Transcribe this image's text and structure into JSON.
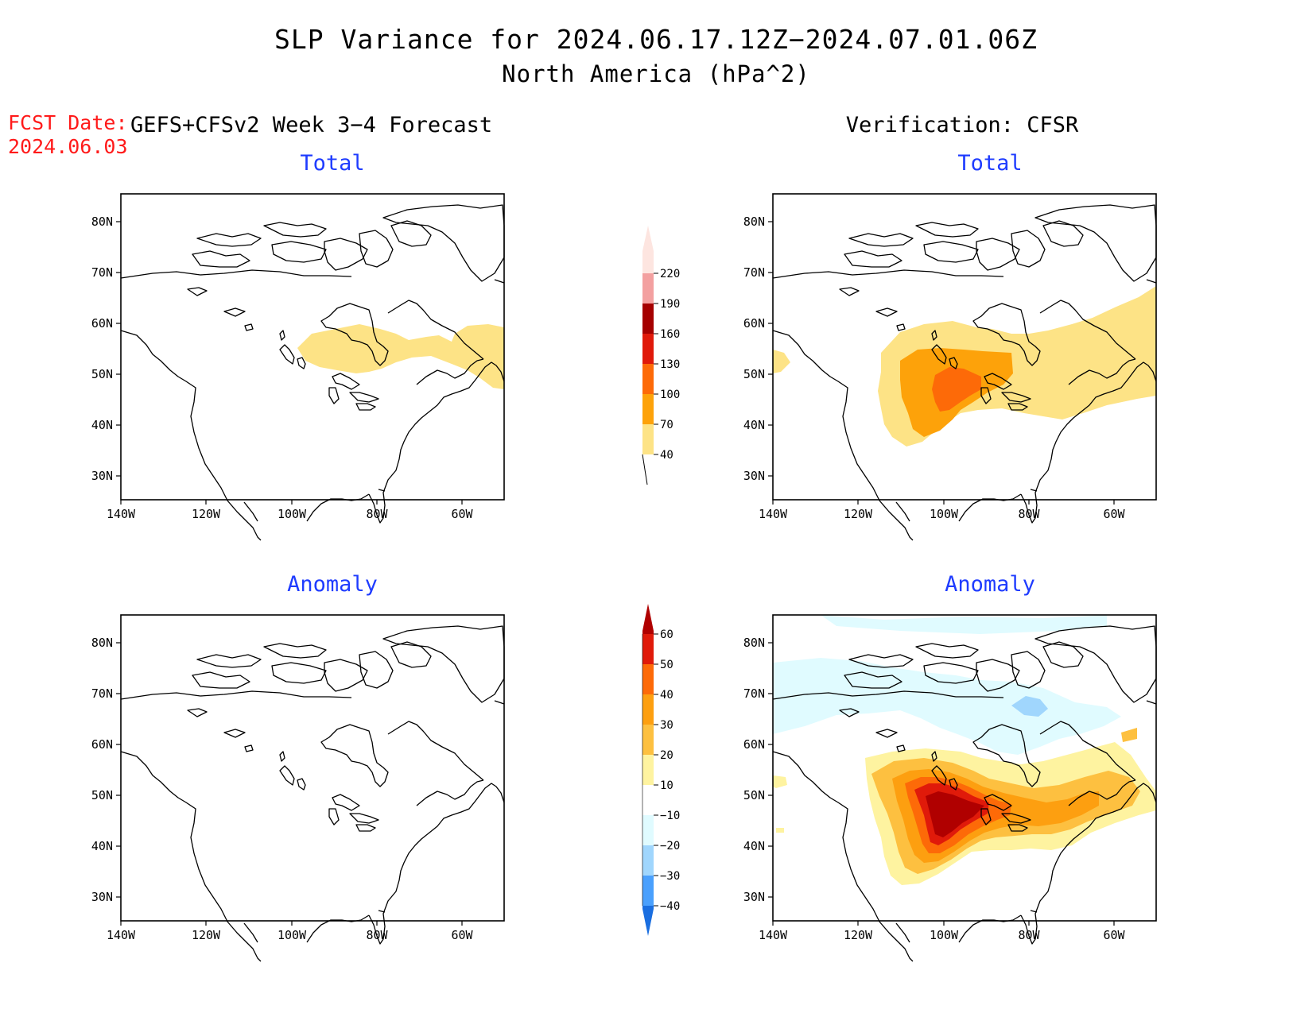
{
  "header": {
    "title_line1": "SLP Variance for 2024.06.17.12Z−2024.07.01.06Z",
    "title_line2": "North America (hPa^2)",
    "fcst_date_label": "FCST Date:",
    "fcst_date_value": "2024.06.03",
    "left_column_title": "GEFS+CFSv2 Week 3−4 Forecast",
    "right_column_title": "Verification: CFSR"
  },
  "panels": [
    {
      "id": "forecast-total",
      "title": "Total"
    },
    {
      "id": "verification-total",
      "title": "Total"
    },
    {
      "id": "forecast-anomaly",
      "title": "Anomaly"
    },
    {
      "id": "verification-anomaly",
      "title": "Anomaly"
    }
  ],
  "axes": {
    "lat_labels": [
      "30N",
      "40N",
      "50N",
      "60N",
      "70N",
      "80N"
    ],
    "lon_labels": [
      "140W",
      "120W",
      "100W",
      "80W",
      "60W"
    ]
  },
  "colorbars": {
    "total": {
      "levels": [
        "40",
        "70",
        "100",
        "130",
        "160",
        "190",
        "220"
      ],
      "colors": [
        "#fde386",
        "#fda20a",
        "#fd6a08",
        "#e0190a",
        "#a50000",
        "#f3a0a0",
        "#fde5e0"
      ]
    },
    "anomaly": {
      "levels": [
        "60",
        "50",
        "40",
        "30",
        "20",
        "10",
        "−10",
        "−20",
        "−30",
        "−40"
      ],
      "colors_top_to_bottom": [
        "#b00000",
        "#e01a0a",
        "#fd6a08",
        "#fd9f10",
        "#fdc040",
        "#fef3a0",
        "#ffffff",
        "#e0fbff",
        "#a0d6fd",
        "#4aa0fd",
        "#1a6ee0"
      ]
    }
  },
  "colors": {
    "title_blue": "#1f3cff",
    "fcst_red": "#ff1a1a"
  }
}
